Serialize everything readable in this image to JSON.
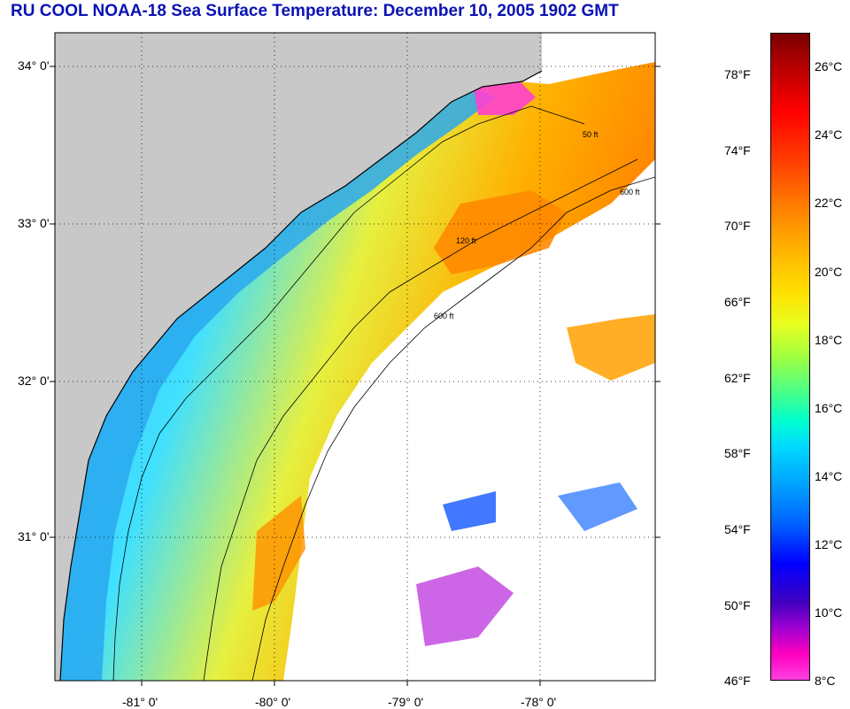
{
  "title": "RU COOL  NOAA-18  Sea Surface Temperature:  December 10, 2005 1902 GMT",
  "latitude_labels": [
    "34° 0'",
    "33° 0'",
    "32° 0'",
    "31° 0'"
  ],
  "longitude_labels": [
    "-81° 0'",
    "-80° 0'",
    "-79° 0'",
    "-78° 0'"
  ],
  "isobath_labels": [
    "50 ft",
    "120 ft",
    "600 ft"
  ],
  "colorbar": {
    "fahrenheit_labels": [
      "78°F",
      "74°F",
      "70°F",
      "66°F",
      "62°F",
      "58°F",
      "54°F",
      "50°F",
      "46°F"
    ],
    "celsius_labels": [
      "26°C",
      "24°C",
      "22°C",
      "20°C",
      "18°C",
      "16°C",
      "14°C",
      "12°C",
      "10°C",
      "8°C"
    ]
  },
  "colors": {
    "title": "#0a12b4",
    "land": "#c8c8c8",
    "cloud_mask": "#ffffff"
  }
}
